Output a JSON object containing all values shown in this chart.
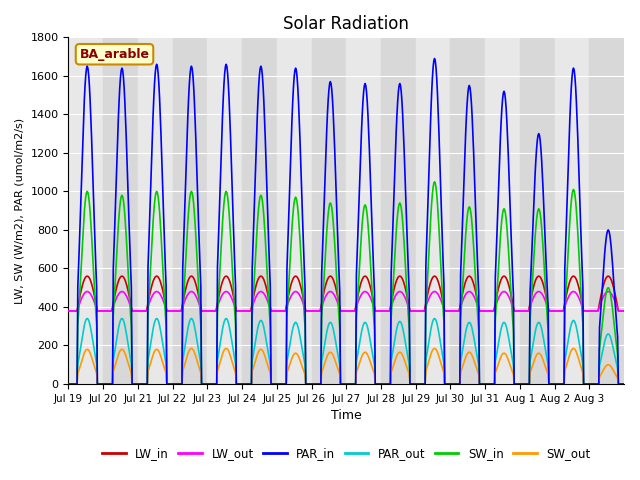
{
  "title": "Solar Radiation",
  "ylabel": "LW, SW (W/m2), PAR (umol/m2/s)",
  "xlabel": "Time",
  "site_label": "BA_arable",
  "ylim": [
    0,
    1800
  ],
  "series": {
    "LW_in": {
      "color": "#cc0000",
      "lw": 1.2
    },
    "LW_out": {
      "color": "#ff00ff",
      "lw": 1.2
    },
    "PAR_in": {
      "color": "#0000ff",
      "lw": 1.2
    },
    "PAR_out": {
      "color": "#00cccc",
      "lw": 1.2
    },
    "SW_in": {
      "color": "#00cc00",
      "lw": 1.2
    },
    "SW_out": {
      "color": "#ff9900",
      "lw": 1.2
    }
  },
  "xtick_labels": [
    "Jul 19",
    "Jul 20",
    "Jul 21",
    "Jul 22",
    "Jul 23",
    "Jul 24",
    "Jul 25",
    "Jul 26",
    "Jul 27",
    "Jul 28",
    "Jul 29",
    "Jul 30",
    "Jul 31",
    "Aug 1",
    "Aug 2",
    "Aug 3"
  ],
  "legend_entries": [
    "LW_in",
    "LW_out",
    "PAR_in",
    "PAR_out",
    "SW_in",
    "SW_out"
  ],
  "legend_colors": [
    "#cc0000",
    "#ff00ff",
    "#0000ff",
    "#00cccc",
    "#00cc00",
    "#ff9900"
  ],
  "par_in_peaks": [
    1650,
    1640,
    1660,
    1650,
    1660,
    1650,
    1640,
    1570,
    1560,
    1560,
    1690,
    1550,
    1520,
    1300,
    1640,
    800
  ],
  "sw_in_peaks": [
    1000,
    980,
    1000,
    1000,
    1000,
    980,
    970,
    940,
    930,
    940,
    1050,
    920,
    910,
    910,
    1010,
    500
  ],
  "sw_out_peaks": [
    180,
    180,
    180,
    185,
    185,
    180,
    160,
    165,
    165,
    165,
    185,
    165,
    160,
    160,
    185,
    100
  ],
  "par_out_peaks": [
    340,
    340,
    340,
    340,
    340,
    330,
    320,
    320,
    320,
    325,
    340,
    320,
    320,
    320,
    330,
    260
  ],
  "n_days": 16,
  "pts_per_day": 48,
  "band_colors": [
    "#e8e8e8",
    "#d8d8d8"
  ]
}
